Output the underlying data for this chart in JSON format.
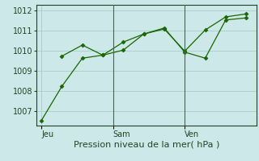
{
  "background_color": "#cce8e8",
  "grid_color": "#aacccc",
  "line_color": "#1a6600",
  "marker_color": "#1a6600",
  "xlabel": "Pression niveau de la mer( hPa )",
  "ylim": [
    1006.3,
    1012.3
  ],
  "yticks": [
    1007,
    1008,
    1009,
    1010,
    1011,
    1012
  ],
  "series1_x": [
    0,
    2,
    4,
    6,
    8,
    10,
    12,
    14,
    16,
    18,
    20
  ],
  "series1_y": [
    1006.55,
    1008.25,
    1009.65,
    1009.8,
    1010.45,
    1010.85,
    1011.1,
    1010.0,
    1011.05,
    1011.7,
    1011.85
  ],
  "series2_x": [
    2,
    4,
    6,
    8,
    10,
    12,
    14,
    16,
    18,
    20
  ],
  "series2_y": [
    1009.75,
    1010.3,
    1009.8,
    1010.05,
    1010.85,
    1011.15,
    1009.95,
    1009.65,
    1011.55,
    1011.65
  ],
  "vlines_x": [
    7.0,
    14.0
  ],
  "xtick_positions": [
    0.0,
    7.0,
    14.0
  ],
  "xtick_labels": [
    "Jeu",
    "Sam",
    "Ven"
  ],
  "fontsize_xlabel": 8,
  "fontsize_ytick": 7,
  "fontsize_xtick": 7
}
